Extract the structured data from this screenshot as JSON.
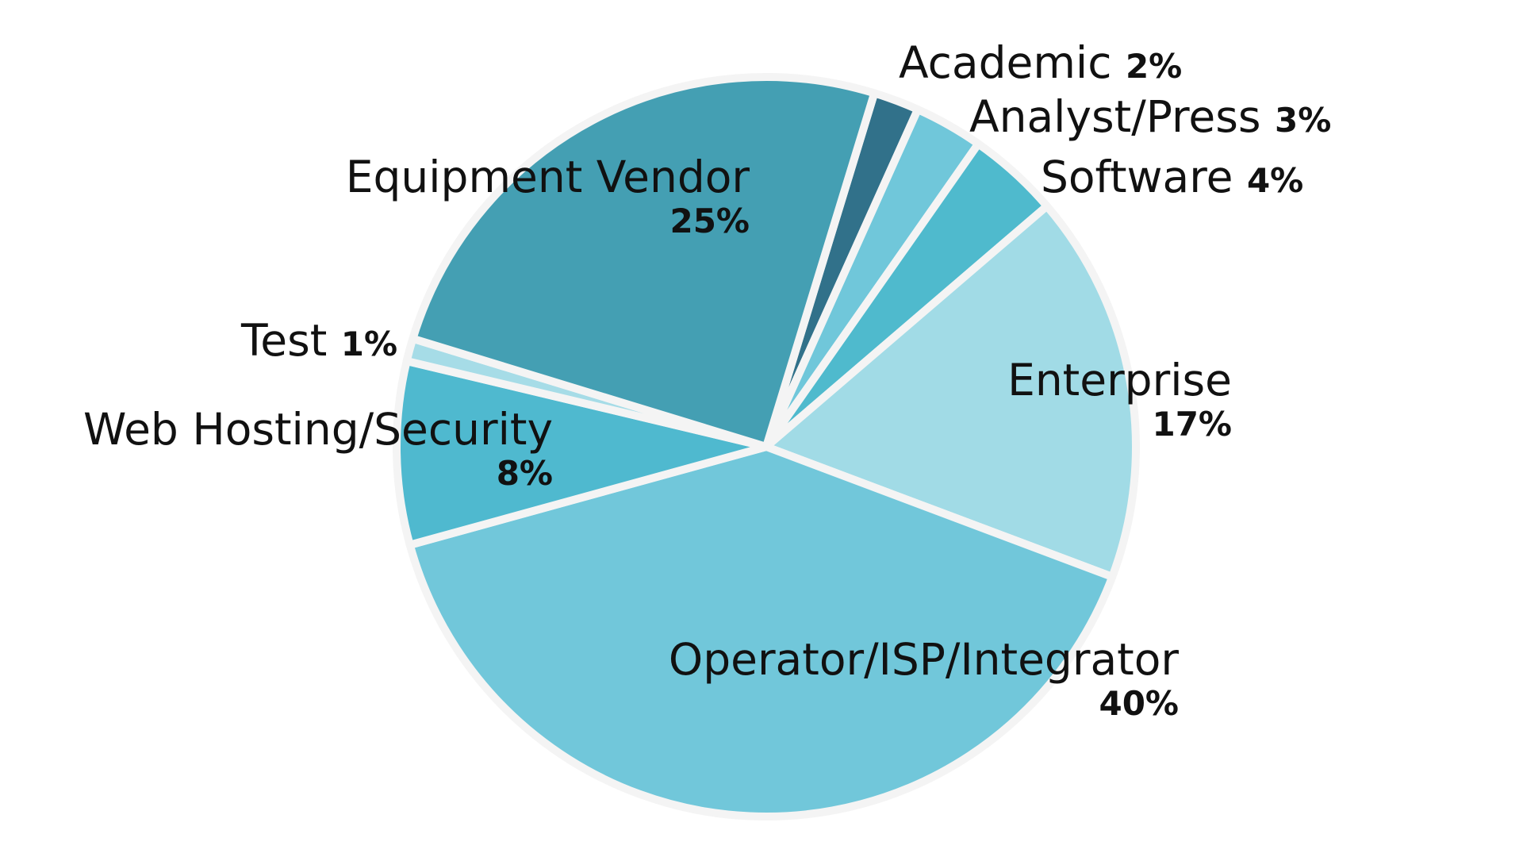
{
  "chart_data": {
    "type": "pie",
    "title": "",
    "start_angle_deg": 17,
    "direction": "clockwise",
    "legend": "none",
    "slices": [
      {
        "label": "Academic",
        "value": 2,
        "value_label": "2%",
        "color": "#31718a"
      },
      {
        "label": "Analyst/Press",
        "value": 3,
        "value_label": "3%",
        "color": "#70c7da"
      },
      {
        "label": "Software",
        "value": 4,
        "value_label": "4%",
        "color": "#4fbacd"
      },
      {
        "label": "Enterprise",
        "value": 17,
        "value_label": "17%",
        "color": "#a1dbe6"
      },
      {
        "label": "Operator/ISP/Integrator",
        "value": 40,
        "value_label": "40%",
        "color": "#71c7da"
      },
      {
        "label": "Web Hosting/Security",
        "value": 8,
        "value_label": "8%",
        "color": "#4fb9cf"
      },
      {
        "label": "Test",
        "value": 1,
        "value_label": "1%",
        "color": "#a6dce7"
      },
      {
        "label": "Equipment Vendor",
        "value": 25,
        "value_label": "25%",
        "color": "#449fb3"
      }
    ],
    "outline_color": "#f4f4f4"
  }
}
